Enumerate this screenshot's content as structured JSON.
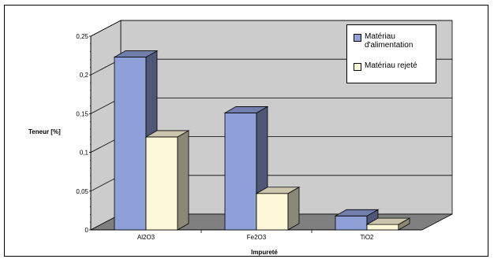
{
  "chart_data": {
    "type": "bar",
    "style": "3d-clustered",
    "categories": [
      "Al2O3",
      "Fe2O3",
      "TiO2"
    ],
    "series": [
      {
        "name": "Matériau d'alimentation",
        "values": [
          0.223,
          0.151,
          0.018
        ],
        "color": "#8f9fd8"
      },
      {
        "name": "Matériau rejeté",
        "values": [
          0.12,
          0.047,
          0.007
        ],
        "color": "#fdf8d8"
      }
    ],
    "ylim": [
      0,
      0.25
    ],
    "yticks": [
      "0",
      "0,05",
      "0,1",
      "0,15",
      "0,2",
      "0,25"
    ],
    "ylabel": "Teneur [%]",
    "xlabel": "Impureté",
    "grid": true,
    "legend_position": "top-right",
    "wall_color": "#cccccc",
    "floor_color": "#808080"
  }
}
